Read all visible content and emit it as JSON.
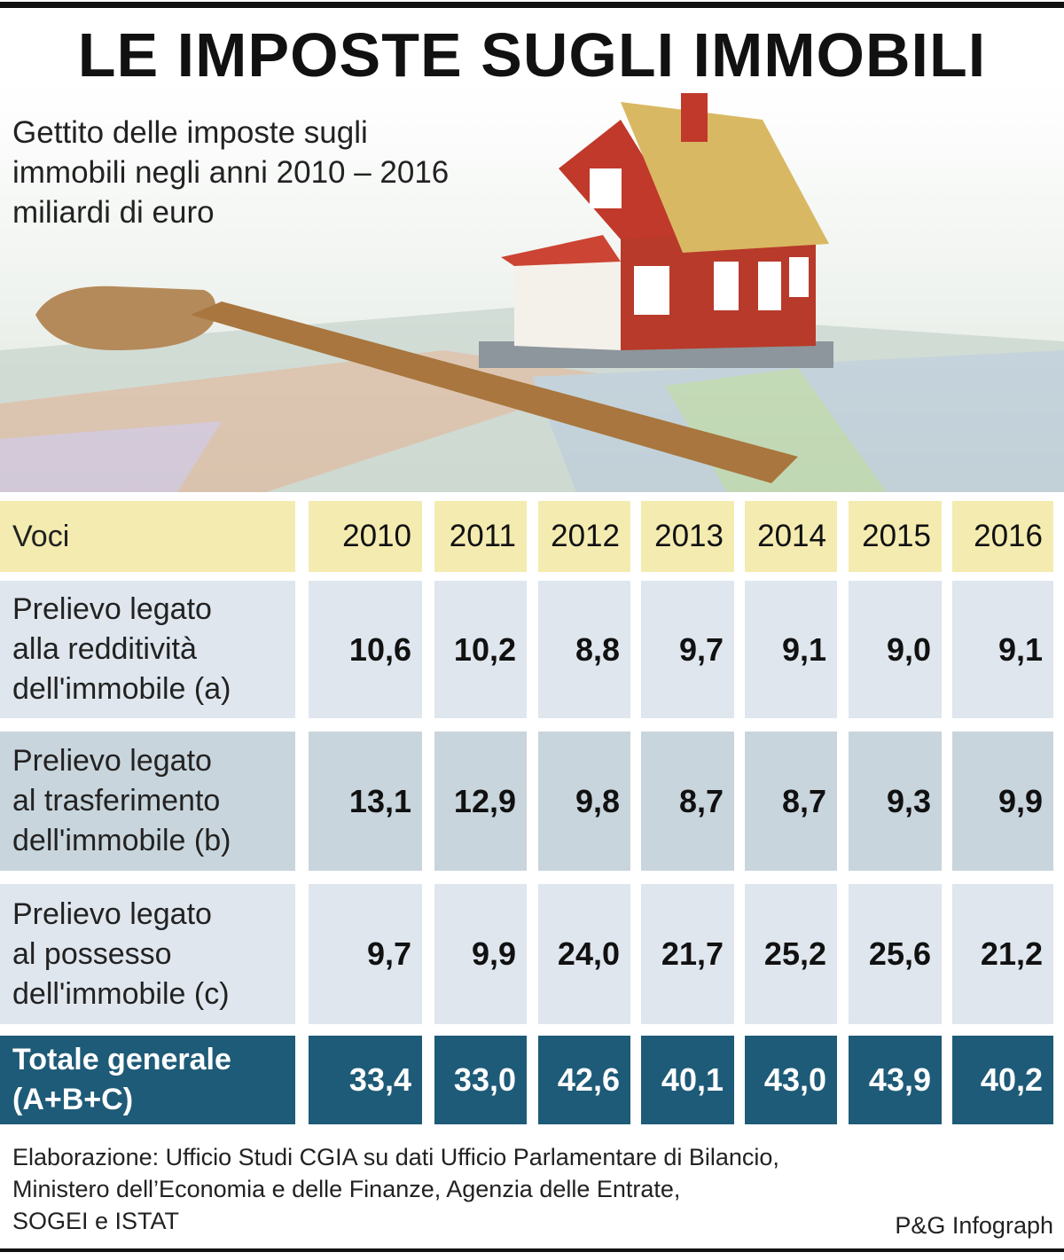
{
  "title": "LE IMPOSTE SUGLI IMMOBILI",
  "subtitle": [
    "Gettito delle imposte sugli",
    "immobili negli anni 2010 – 2016",
    "miliardi di euro"
  ],
  "table": {
    "header": [
      "Voci",
      "2010",
      "2011",
      "2012",
      "2013",
      "2014",
      "2015",
      "2016"
    ],
    "rows": [
      {
        "label": [
          "Prelievo legato",
          "alla redditività",
          "dell'immobile (a)"
        ],
        "values": [
          "10,6",
          "10,2",
          "8,8",
          "9,7",
          "9,1",
          "9,0",
          "9,1"
        ]
      },
      {
        "label": [
          "Prelievo legato",
          "al trasferimento",
          "dell'immobile (b)"
        ],
        "values": [
          "13,1",
          "12,9",
          "9,8",
          "8,7",
          "8,7",
          "9,3",
          "9,9"
        ]
      },
      {
        "label": [
          "Prelievo legato",
          "al possesso",
          "dell'immobile (c)"
        ],
        "values": [
          "9,7",
          "9,9",
          "24,0",
          "21,7",
          "25,2",
          "25,6",
          "21,2"
        ]
      },
      {
        "label": [
          "Totale generale",
          "(A+B+C)"
        ],
        "values": [
          "33,4",
          "33,0",
          "42,6",
          "40,1",
          "43,0",
          "43,9",
          "40,2"
        ]
      }
    ]
  },
  "source": [
    "Elaborazione: Ufficio Studi CGIA su dati Ufficio Parlamentare di Bilancio,",
    "Ministero dell’Economia e delle Finanze, Agenzia delle Entrate,",
    "SOGEI e ISTAT"
  ],
  "credit": "P&G Infograph"
}
